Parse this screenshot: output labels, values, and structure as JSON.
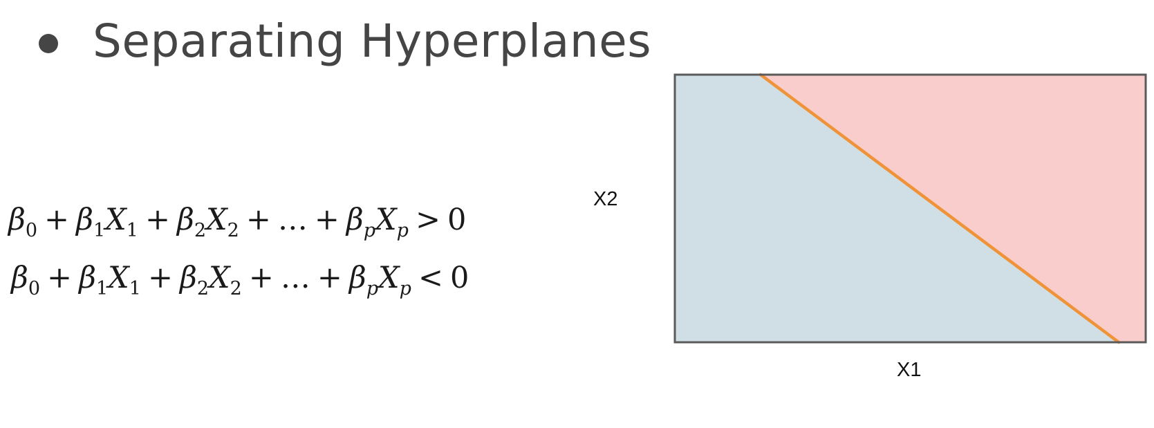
{
  "slide": {
    "title": "Separating Hyperplanes"
  },
  "equations": [
    {
      "lhs": [
        "β",
        "0",
        "β",
        "1",
        "X",
        "1",
        "β",
        "2",
        "X",
        "2",
        "…",
        "β",
        "p",
        "X",
        "p"
      ],
      "relation": ">",
      "rhs": "0"
    },
    {
      "lhs": [
        "β",
        "0",
        "β",
        "1",
        "X",
        "1",
        "β",
        "2",
        "X",
        "2",
        "…",
        "β",
        "p",
        "X",
        "p"
      ],
      "relation": "<",
      "rhs": "0"
    }
  ],
  "diagram": {
    "x_axis_label": "X1",
    "y_axis_label": "X2",
    "colors": {
      "region_below": "#cfdfe5",
      "region_above": "#f9cdcb",
      "hyperplane": "#ef9238",
      "border": "#5a5a5a"
    }
  }
}
